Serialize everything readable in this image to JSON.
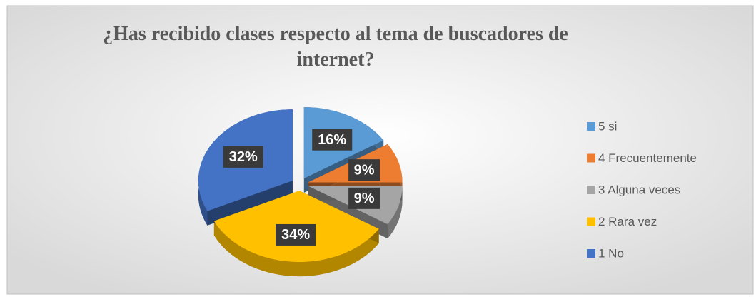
{
  "chart_data": {
    "type": "pie",
    "title": "¿Has recibido clases respecto al tema de buscadores de internet?",
    "categories": [
      "5 si",
      "4 Frecuentemente",
      "3 Alguna veces",
      "2 Rara vez",
      "1 No"
    ],
    "values": [
      16,
      9,
      9,
      34,
      32
    ],
    "value_labels": [
      "16%",
      "9%",
      "9%",
      "34%",
      "32%"
    ],
    "colors": [
      "#5b9bd5",
      "#ed7d31",
      "#a5a5a5",
      "#ffc000",
      "#4472c4"
    ],
    "legend": "right"
  }
}
